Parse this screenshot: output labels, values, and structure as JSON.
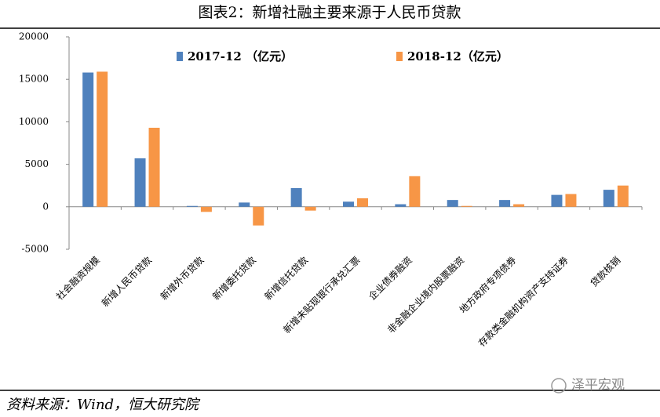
{
  "chart_data": {
    "type": "bar",
    "title": "图表2：新增社融主要来源于人民币贷款",
    "categories": [
      "社会融资规模",
      "新增人民币贷款",
      "新增外币贷款",
      "新增委托贷款",
      "新增信托贷款",
      "新增未贴现银行承兑汇票",
      "企业债券融资",
      "非金融企业境内股票融资",
      "地方政府专项债券",
      "存款类金融机构资产支持证券",
      "贷款核销"
    ],
    "series": [
      {
        "name": "2017-12 （亿元）",
        "color": "#4f81bd",
        "values": [
          15800,
          5700,
          100,
          500,
          2200,
          600,
          300,
          800,
          800,
          1400,
          2000
        ]
      },
      {
        "name": "2018-12（亿元）",
        "color": "#f79646",
        "values": [
          15900,
          9300,
          -600,
          -2200,
          -450,
          1000,
          3600,
          100,
          300,
          1500,
          2500
        ]
      }
    ],
    "ylim": [
      -5000,
      20000
    ],
    "yticks": [
      -5000,
      0,
      5000,
      10000,
      15000,
      20000
    ],
    "grid": false,
    "source": "资料来源：Wind，恒大研究院",
    "watermark": "泽平宏观"
  }
}
